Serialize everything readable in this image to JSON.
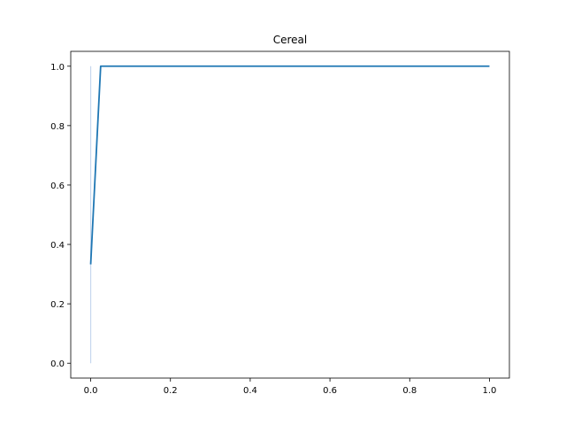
{
  "chart_data": {
    "type": "line",
    "title": "Cereal",
    "xlabel": "",
    "ylabel": "",
    "xlim": [
      -0.05,
      1.05
    ],
    "ylim": [
      -0.05,
      1.05
    ],
    "xticks": [
      0.0,
      0.2,
      0.4,
      0.6,
      0.8,
      1.0
    ],
    "xtick_labels": [
      "0.0",
      "0.2",
      "0.4",
      "0.6",
      "0.8",
      "1.0"
    ],
    "yticks": [
      0.0,
      0.2,
      0.4,
      0.6,
      0.8,
      1.0
    ],
    "ytick_labels": [
      "0.0",
      "0.2",
      "0.4",
      "0.6",
      "0.8",
      "1.0"
    ],
    "grid": false,
    "series": [
      {
        "color": "#1f77b4",
        "x": [
          0.0,
          0.025,
          1.0
        ],
        "y": [
          0.333,
          1.0,
          1.0
        ],
        "band": {
          "x": 0.0,
          "y_low": 0.0,
          "y_high": 1.0,
          "color": "#aec7e8"
        }
      }
    ]
  }
}
